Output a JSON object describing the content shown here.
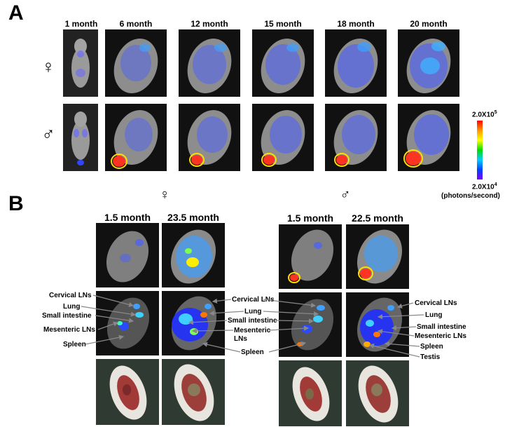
{
  "panel_a": {
    "letter": "A",
    "columns": [
      "1 month",
      "6 month",
      "12 month",
      "15 month",
      "18 month",
      "20 month"
    ],
    "row_female_symbol": "♀",
    "row_male_symbol": "♂"
  },
  "scale_bar": {
    "max_label": "2.0X10",
    "max_exp": "5",
    "min_label": "2.0X10",
    "min_exp": "4",
    "unit": "(photons/second)"
  },
  "panel_b": {
    "letter": "B",
    "female_symbol": "♀",
    "male_symbol": "♂",
    "female_columns": [
      "1.5 month",
      "23.5 month"
    ],
    "male_columns": [
      "1.5 month",
      "22.5 month"
    ],
    "female_organ_labels": [
      "Cervical LNs",
      "Lung",
      "Small intestine",
      "Mesenteric LNs",
      "Spleen"
    ],
    "female_right_labels": [
      "Cervical LNs",
      "Lung",
      "Small intestine",
      "Mesenteric",
      "LNs",
      "Spleen"
    ],
    "male_right_labels": [
      "Cervical LNs",
      "Lung",
      "Small intestine",
      "Mesenteric LNs",
      "Spleen",
      "Testis"
    ]
  }
}
